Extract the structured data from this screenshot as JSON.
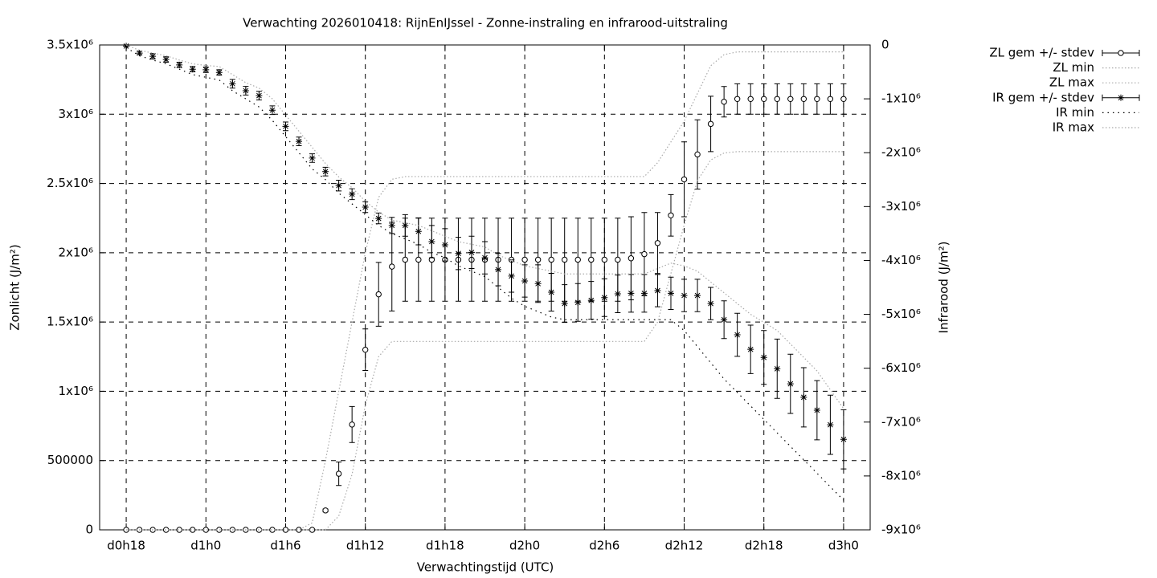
{
  "chart_data": {
    "type": "errorbar",
    "title": "Verwachting 2026010418: RijnEnIJssel - Zonne-instraling en infrarood-uitstraling",
    "x_label": "Verwachtingstijd (UTC)",
    "y_label": "Zonlicht (J/m²)",
    "y2_label": "Infrarood (J/m²)",
    "x": [
      18,
      19,
      20,
      21,
      22,
      23,
      24,
      25,
      26,
      27,
      28,
      29,
      30,
      31,
      32,
      33,
      34,
      35,
      36,
      37,
      38,
      39,
      40,
      41,
      42,
      43,
      44,
      45,
      46,
      47,
      48,
      49,
      50,
      51,
      52,
      53,
      54,
      55,
      56,
      57,
      58,
      59,
      60,
      61,
      62,
      63,
      64,
      65,
      66,
      67,
      68,
      69,
      70,
      71,
      72
    ],
    "xlim": [
      16,
      74
    ],
    "xticks": [
      {
        "value": 18,
        "label": "d0h18"
      },
      {
        "value": 24,
        "label": "d1h0"
      },
      {
        "value": 30,
        "label": "d1h6"
      },
      {
        "value": 36,
        "label": "d1h12"
      },
      {
        "value": 42,
        "label": "d1h18"
      },
      {
        "value": 48,
        "label": "d2h0"
      },
      {
        "value": 54,
        "label": "d2h6"
      },
      {
        "value": 60,
        "label": "d2h12"
      },
      {
        "value": 66,
        "label": "d2h18"
      },
      {
        "value": 72,
        "label": "d3h0"
      }
    ],
    "ylim": [
      0,
      3500000
    ],
    "yticks": [
      0,
      500000,
      {
        "value": 1000000,
        "label": "1x10⁶"
      },
      {
        "value": 1500000,
        "label": "1.5x10⁶"
      },
      {
        "value": 2000000,
        "label": "2x10⁶"
      },
      {
        "value": 2500000,
        "label": "2.5x10⁶"
      },
      {
        "value": 3000000,
        "label": "3x10⁶"
      },
      {
        "value": 3500000,
        "label": "3.5x10⁶"
      }
    ],
    "y2lim": [
      -9000000,
      0
    ],
    "y2ticks": [
      0,
      {
        "value": -1000000,
        "label": "-1x10⁶"
      },
      {
        "value": -2000000,
        "label": "-2x10⁶"
      },
      {
        "value": -3000000,
        "label": "-3x10⁶"
      },
      {
        "value": -4000000,
        "label": "-4x10⁶"
      },
      {
        "value": -5000000,
        "label": "-5x10⁶"
      },
      {
        "value": -6000000,
        "label": "-6x10⁶"
      },
      {
        "value": -7000000,
        "label": "-7x10⁶"
      },
      {
        "value": -8000000,
        "label": "-8x10⁶"
      },
      {
        "value": -9000000,
        "label": "-9x10⁶"
      }
    ],
    "grid": true,
    "legend": "outside-top-right",
    "series": [
      {
        "name": "ZL gem +/- stdev",
        "color": "#000000",
        "style": "errorbar",
        "marker": "circle",
        "values": [
          0,
          0,
          0,
          0,
          0,
          0,
          0,
          0,
          0,
          0,
          0,
          0,
          0,
          0,
          0,
          140000,
          405000,
          760000,
          1300000,
          1700000,
          1900000,
          1950000,
          1950000,
          1950000,
          1950000,
          1950000,
          1950000,
          1950000,
          1950000,
          1950000,
          1950000,
          1950000,
          1950000,
          1950000,
          1950000,
          1950000,
          1950000,
          1950000,
          1960000,
          1990000,
          2070000,
          2270000,
          2530000,
          2710000,
          2930000,
          3090000,
          3110000,
          3110000,
          3110000,
          3110000,
          3110000,
          3110000,
          3110000,
          3110000,
          3110000
        ],
        "errors": [
          0,
          0,
          0,
          0,
          0,
          0,
          0,
          0,
          0,
          0,
          0,
          0,
          0,
          0,
          0,
          10000,
          85000,
          130000,
          150000,
          230000,
          320000,
          300000,
          300000,
          300000,
          300000,
          300000,
          300000,
          300000,
          300000,
          300000,
          300000,
          300000,
          300000,
          300000,
          300000,
          300000,
          300000,
          300000,
          300000,
          300000,
          220000,
          150000,
          270000,
          250000,
          200000,
          110000,
          110000,
          110000,
          110000,
          110000,
          110000,
          110000,
          110000,
          110000,
          110000
        ]
      },
      {
        "name": "ZL min",
        "color": "#aaaaaa",
        "style": "dotted",
        "values": [
          0,
          0,
          0,
          0,
          0,
          0,
          0,
          0,
          0,
          0,
          0,
          0,
          0,
          0,
          0,
          0,
          100000,
          400000,
          900000,
          1250000,
          1360000,
          1360000,
          1360000,
          1360000,
          1360000,
          1360000,
          1360000,
          1360000,
          1360000,
          1360000,
          1360000,
          1360000,
          1360000,
          1360000,
          1360000,
          1360000,
          1360000,
          1360000,
          1360000,
          1360000,
          1500000,
          1850000,
          2200000,
          2520000,
          2670000,
          2720000,
          2730000,
          2730000,
          2730000,
          2730000,
          2730000,
          2730000,
          2730000,
          2730000,
          2730000
        ]
      },
      {
        "name": "ZL max",
        "color": "#aaaaaa",
        "style": "dotted",
        "values": [
          0,
          0,
          0,
          0,
          0,
          0,
          0,
          0,
          0,
          0,
          0,
          0,
          0,
          0,
          50000,
          500000,
          1000000,
          1500000,
          2000000,
          2400000,
          2530000,
          2550000,
          2550000,
          2550000,
          2550000,
          2550000,
          2550000,
          2550000,
          2550000,
          2550000,
          2550000,
          2550000,
          2550000,
          2550000,
          2550000,
          2550000,
          2550000,
          2550000,
          2550000,
          2550000,
          2650000,
          2800000,
          2950000,
          3150000,
          3350000,
          3430000,
          3450000,
          3450000,
          3450000,
          3450000,
          3450000,
          3450000,
          3450000,
          3450000,
          3450000
        ]
      },
      {
        "name": "IR gem +/- stdev",
        "color": "#000000",
        "style": "errorbar",
        "marker": "star",
        "axis": "y2",
        "values": [
          -20000,
          -150000,
          -210000,
          -270000,
          -370000,
          -450000,
          -460000,
          -510000,
          -720000,
          -850000,
          -940000,
          -1210000,
          -1510000,
          -1790000,
          -2100000,
          -2350000,
          -2610000,
          -2770000,
          -3010000,
          -3220000,
          -3350000,
          -3350000,
          -3460000,
          -3650000,
          -3710000,
          -3870000,
          -3850000,
          -3950000,
          -4170000,
          -4290000,
          -4380000,
          -4430000,
          -4590000,
          -4800000,
          -4780000,
          -4740000,
          -4690000,
          -4620000,
          -4610000,
          -4610000,
          -4560000,
          -4610000,
          -4650000,
          -4650000,
          -4800000,
          -5100000,
          -5380000,
          -5650000,
          -5800000,
          -6010000,
          -6290000,
          -6540000,
          -6780000,
          -7050000,
          -7320000
        ],
        "errors": [
          0,
          30000,
          50000,
          50000,
          50000,
          50000,
          50000,
          50000,
          80000,
          80000,
          80000,
          80000,
          80000,
          80000,
          80000,
          80000,
          100000,
          100000,
          100000,
          100000,
          150000,
          200000,
          250000,
          300000,
          300000,
          300000,
          300000,
          300000,
          300000,
          300000,
          300000,
          350000,
          350000,
          350000,
          350000,
          350000,
          350000,
          350000,
          350000,
          350000,
          300000,
          300000,
          300000,
          300000,
          300000,
          350000,
          400000,
          450000,
          500000,
          550000,
          550000,
          550000,
          550000,
          550000,
          550000
        ]
      },
      {
        "name": "IR min",
        "color": "#000000",
        "style": "dots",
        "axis": "y2",
        "values": [
          -50000,
          -200000,
          -280000,
          -350000,
          -450000,
          -550000,
          -600000,
          -650000,
          -850000,
          -1000000,
          -1150000,
          -1400000,
          -1700000,
          -2000000,
          -2300000,
          -2500000,
          -2750000,
          -2950000,
          -3150000,
          -3350000,
          -3500000,
          -3600000,
          -3700000,
          -3850000,
          -3950000,
          -4100000,
          -4200000,
          -4300000,
          -4500000,
          -4700000,
          -4850000,
          -4950000,
          -5050000,
          -5100000,
          -5100000,
          -5100000,
          -5100000,
          -5100000,
          -5100000,
          -5100000,
          -5100000,
          -5100000,
          -5300000,
          -5600000,
          -5900000,
          -6200000,
          -6450000,
          -6700000,
          -6950000,
          -7200000,
          -7450000,
          -7700000,
          -7950000,
          -8200000,
          -8450000
        ]
      },
      {
        "name": "IR max",
        "color": "#aaaaaa",
        "style": "dotted",
        "axis": "y2",
        "values": [
          0,
          -100000,
          -150000,
          -200000,
          -280000,
          -350000,
          -380000,
          -400000,
          -550000,
          -700000,
          -800000,
          -1000000,
          -1300000,
          -1600000,
          -1900000,
          -2200000,
          -2450000,
          -2650000,
          -2900000,
          -3100000,
          -3250000,
          -3300000,
          -3350000,
          -3450000,
          -3550000,
          -3650000,
          -3700000,
          -3750000,
          -3900000,
          -4000000,
          -4100000,
          -4150000,
          -4200000,
          -4250000,
          -4250000,
          -4250000,
          -4250000,
          -4250000,
          -4250000,
          -4250000,
          -4150000,
          -4050000,
          -4100000,
          -4200000,
          -4400000,
          -4600000,
          -4800000,
          -5000000,
          -5150000,
          -5300000,
          -5550000,
          -5800000,
          -6050000,
          -6400000,
          -6750000
        ]
      }
    ]
  }
}
